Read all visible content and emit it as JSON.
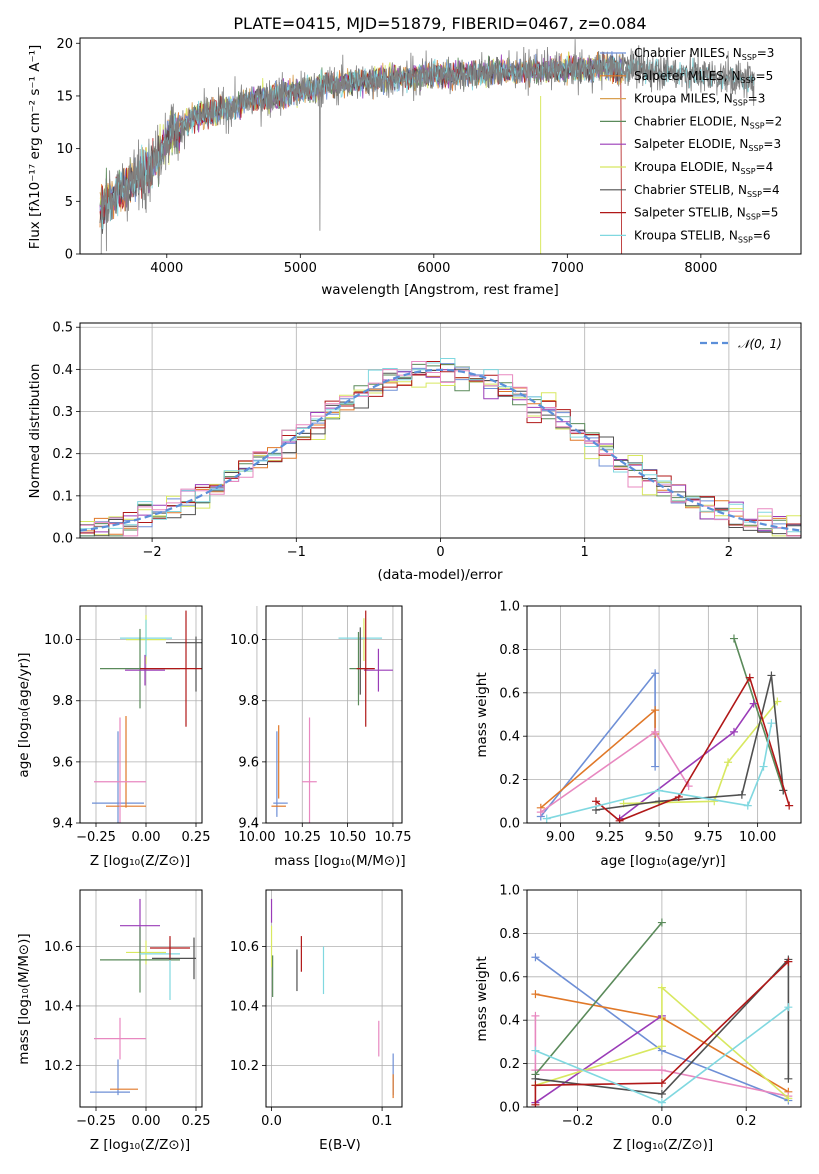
{
  "colors": {
    "Chabrier MILES": "#6e8fd6",
    "Salpeter MILES": "#e07828",
    "Kroupa MILES": "#d9a050",
    "Chabrier ELODIE": "#5a8a5a",
    "Salpeter ELODIE": "#9a3cb8",
    "Kroupa ELODIE": "#d8e860",
    "Chabrier STELIB": "#505050",
    "Salpeter STELIB": "#b01818",
    "Kroupa STELIB": "#80d8e0",
    "pink": "#e888c0",
    "normal": "#5b8fd9"
  },
  "chart_data": [
    {
      "id": "spectrum",
      "type": "line",
      "title": "PLATE=0415, MJD=51879, FIBERID=0467, z=0.084",
      "xlabel": "wavelength [Angstrom, rest frame]",
      "ylabel": "Flux [fλ10⁻¹⁷ erg cm⁻² s⁻¹ A⁻¹]",
      "xlim": [
        3350,
        8750
      ],
      "ylim": [
        0,
        20.5
      ],
      "xticks": [
        "4000",
        "5000",
        "6000",
        "7000",
        "8000"
      ],
      "yticks": [
        "0",
        "5",
        "10",
        "15",
        "20"
      ],
      "grid": false,
      "legend_position": "upper right",
      "legend": [
        {
          "name": "Chabrier MILES",
          "nssp": "3"
        },
        {
          "name": "Salpeter MILES",
          "nssp": "5"
        },
        {
          "name": "Kroupa MILES",
          "nssp": "3"
        },
        {
          "name": "Chabrier ELODIE",
          "nssp": "2"
        },
        {
          "name": "Salpeter ELODIE",
          "nssp": "3"
        },
        {
          "name": "Kroupa ELODIE",
          "nssp": "4"
        },
        {
          "name": "Chabrier STELIB",
          "nssp": "4"
        },
        {
          "name": "Salpeter STELIB",
          "nssp": "5"
        },
        {
          "name": "Kroupa STELIB",
          "nssp": "6"
        }
      ],
      "nssp_label": "N",
      "nssp_sub": "SSP",
      "continuum": {
        "wavelength": [
          3500,
          3700,
          3900,
          4000,
          4200,
          4400,
          4600,
          4800,
          5000,
          5200,
          5500,
          6000,
          6500,
          7000,
          7400,
          8000,
          8400
        ],
        "flux": [
          4.5,
          6.5,
          8.5,
          11.0,
          13.0,
          13.5,
          14.5,
          15.0,
          15.5,
          16.0,
          16.5,
          17.0,
          17.3,
          17.5,
          17.7,
          17.0,
          16.5
        ]
      }
    },
    {
      "id": "residuals",
      "type": "histogram",
      "xlabel": "(data-model)/error",
      "ylabel": "Normed distribution",
      "xlim": [
        -2.5,
        2.5
      ],
      "ylim": [
        0,
        0.51
      ],
      "xticks": [
        "−2",
        "−1",
        "0",
        "1",
        "2"
      ],
      "yticks": [
        "0.0",
        "0.1",
        "0.2",
        "0.3",
        "0.4",
        "0.5"
      ],
      "grid": true,
      "bin_width": 0.1,
      "legend": "𝒩(0, 1)",
      "legend_position": "upper right",
      "reference_curve": {
        "name": "N(0,1)",
        "mean": 0,
        "sigma": 1
      }
    },
    {
      "id": "age_vs_Z",
      "type": "errorbar",
      "xlabel": "Z [log₁₀(Z/Z⊙)]",
      "ylabel": "age  [log₁₀(age/yr)]",
      "xlim": [
        -0.33,
        0.28
      ],
      "ylim": [
        9.4,
        10.11
      ],
      "xticks": [
        "−0.25",
        "0.00",
        "0.25"
      ],
      "yticks": [
        "9.4",
        "9.6",
        "9.8",
        "10.0"
      ],
      "grid": true,
      "points": [
        {
          "c": "Chabrier MILES",
          "x": -0.14,
          "xerr": 0.13,
          "y": 9.465,
          "yerr": 0.0
        },
        {
          "c": "Chabrier MILES",
          "x": -0.14,
          "xerr": 0.0,
          "y": 9.55,
          "yerr": 0.15
        },
        {
          "c": "Salpeter MILES",
          "x": -0.1,
          "xerr": 0.1,
          "y": 9.455,
          "yerr": 0.0
        },
        {
          "c": "Salpeter MILES",
          "x": -0.1,
          "xerr": 0.0,
          "y": 9.6,
          "yerr": 0.15
        },
        {
          "c": "pink",
          "x": -0.13,
          "xerr": 0.13,
          "y": 9.535,
          "yerr": 0.21
        },
        {
          "c": "Kroupa ELODIE",
          "x": 0.0,
          "xerr": 0.1,
          "y": 10.0,
          "yerr": 0.08
        },
        {
          "c": "Kroupa STELIB",
          "x": 0.0,
          "xerr": 0.13,
          "y": 10.005,
          "yerr": 0.06
        },
        {
          "c": "Chabrier ELODIE",
          "x": -0.03,
          "xerr": 0.2,
          "y": 9.905,
          "yerr": 0.13
        },
        {
          "c": "Salpeter ELODIE",
          "x": -0.005,
          "xerr": 0.1,
          "y": 9.9,
          "yerr": 0.05
        },
        {
          "c": "Chabrier STELIB",
          "x": 0.2,
          "xerr": 0.1,
          "y": 9.99,
          "yerr": 0.0
        },
        {
          "c": "Chabrier STELIB",
          "x": 0.25,
          "xerr": 0.0,
          "y": 9.92,
          "yerr": 0.09
        },
        {
          "c": "Salpeter STELIB",
          "x": 0.2,
          "xerr": 0.23,
          "y": 9.905,
          "yerr": 0.19
        }
      ]
    },
    {
      "id": "age_vs_mass",
      "type": "errorbar",
      "xlabel": "mass [log₁₀(M/M⊙)]",
      "ylabel": "",
      "xlim": [
        10.05,
        10.8
      ],
      "ylim": [
        9.4,
        10.11
      ],
      "xticks": [
        "10.00",
        "10.25",
        "10.50",
        "10.75"
      ],
      "yticks": [
        "9.4",
        "9.6",
        "9.8",
        "10.0"
      ],
      "grid": true,
      "points": [
        {
          "c": "Chabrier MILES",
          "x": 10.13,
          "xerr": 0.04,
          "y": 9.465,
          "yerr": 0.0
        },
        {
          "c": "Chabrier MILES",
          "x": 10.11,
          "xerr": 0.0,
          "y": 9.56,
          "yerr": 0.14
        },
        {
          "c": "Salpeter MILES",
          "x": 10.12,
          "xerr": 0.04,
          "y": 9.455,
          "yerr": 0.0
        },
        {
          "c": "Salpeter MILES",
          "x": 10.12,
          "xerr": 0.0,
          "y": 9.6,
          "yerr": 0.12
        },
        {
          "c": "pink",
          "x": 10.29,
          "xerr": 0.04,
          "y": 9.535,
          "yerr": 0.21
        },
        {
          "c": "Kroupa ELODIE",
          "x": 10.59,
          "xerr": 0.0,
          "y": 10.0,
          "yerr": 0.07
        },
        {
          "c": "Kroupa STELIB",
          "x": 10.57,
          "xerr": 0.12,
          "y": 10.005,
          "yerr": 0.0
        },
        {
          "c": "Chabrier ELODIE",
          "x": 10.56,
          "xerr": 0.05,
          "y": 9.905,
          "yerr": 0.12
        },
        {
          "c": "Salpeter ELODIE",
          "x": 10.67,
          "xerr": 0.08,
          "y": 9.9,
          "yerr": 0.07
        },
        {
          "c": "Chabrier STELIB",
          "x": 10.57,
          "xerr": 0.0,
          "y": 9.93,
          "yerr": 0.11
        },
        {
          "c": "Salpeter STELIB",
          "x": 10.6,
          "xerr": 0.05,
          "y": 9.905,
          "yerr": 0.19
        }
      ]
    },
    {
      "id": "weight_vs_age",
      "type": "line",
      "xlabel": "age  [log₁₀(age/yr)]",
      "ylabel": "mass weight",
      "xlim": [
        8.83,
        10.22
      ],
      "ylim": [
        0,
        1.0
      ],
      "xticks": [
        "9.00",
        "9.25",
        "9.50",
        "9.75",
        "10.00"
      ],
      "yticks": [
        "0.0",
        "0.2",
        "0.4",
        "0.6",
        "0.8",
        "1.0"
      ],
      "grid": true,
      "series": [
        {
          "c": "Chabrier MILES",
          "x": [
            8.9,
            9.48,
            9.48
          ],
          "y": [
            0.03,
            0.69,
            0.26
          ]
        },
        {
          "c": "Salpeter MILES",
          "x": [
            8.9,
            9.48,
            9.48
          ],
          "y": [
            0.07,
            0.52,
            0.41
          ]
        },
        {
          "c": "pink",
          "x": [
            8.9,
            9.48,
            9.65
          ],
          "y": [
            0.05,
            0.42,
            0.17
          ]
        },
        {
          "c": "Chabrier ELODIE",
          "x": [
            9.88,
            10.13
          ],
          "y": [
            0.85,
            0.15
          ]
        },
        {
          "c": "Salpeter ELODIE",
          "x": [
            9.3,
            9.88,
            9.98
          ],
          "y": [
            0.02,
            0.42,
            0.55
          ]
        },
        {
          "c": "Kroupa ELODIE",
          "x": [
            9.32,
            9.78,
            9.85,
            10.1
          ],
          "y": [
            0.09,
            0.1,
            0.28,
            0.56
          ]
        },
        {
          "c": "Chabrier STELIB",
          "x": [
            9.18,
            9.5,
            9.92,
            10.07,
            10.13
          ],
          "y": [
            0.06,
            0.1,
            0.13,
            0.68,
            0.15
          ]
        },
        {
          "c": "Salpeter STELIB",
          "x": [
            9.18,
            9.3,
            9.6,
            9.96,
            10.16
          ],
          "y": [
            0.1,
            0.01,
            0.12,
            0.67,
            0.08
          ]
        },
        {
          "c": "Kroupa STELIB",
          "x": [
            8.93,
            9.5,
            9.95,
            10.03,
            10.07
          ],
          "y": [
            0.02,
            0.15,
            0.08,
            0.26,
            0.46
          ]
        }
      ]
    },
    {
      "id": "mass_vs_Z",
      "type": "errorbar",
      "xlabel": "Z [log₁₀(Z/Z⊙)]",
      "ylabel": "mass [log₁₀(M/M⊙)]",
      "xlim": [
        -0.33,
        0.28
      ],
      "ylim": [
        10.06,
        10.79
      ],
      "xticks": [
        "−0.25",
        "0.00",
        "0.25"
      ],
      "yticks": [
        "10.2",
        "10.4",
        "10.6"
      ],
      "grid": true,
      "points": [
        {
          "c": "Chabrier MILES",
          "x": -0.18,
          "xerr": 0.1,
          "y": 10.11,
          "yerr": 0.0
        },
        {
          "c": "Chabrier MILES",
          "x": -0.14,
          "xerr": 0.0,
          "y": 10.16,
          "yerr": 0.06
        },
        {
          "c": "Salpeter MILES",
          "x": -0.11,
          "xerr": 0.07,
          "y": 10.12,
          "yerr": 0.0
        },
        {
          "c": "pink",
          "x": -0.13,
          "xerr": 0.13,
          "y": 10.29,
          "yerr": 0.07
        },
        {
          "c": "Salpeter ELODIE",
          "x": -0.03,
          "xerr": 0.1,
          "y": 10.67,
          "yerr": 0.09
        },
        {
          "c": "Kroupa ELODIE",
          "x": 0.0,
          "xerr": 0.1,
          "y": 10.58,
          "yerr": 0.04
        },
        {
          "c": "Chabrier ELODIE",
          "x": -0.03,
          "xerr": 0.2,
          "y": 10.555,
          "yerr": 0.11
        },
        {
          "c": "Kroupa STELIB",
          "x": 0.07,
          "xerr": 0.1,
          "y": 10.575,
          "yerr": 0.0
        },
        {
          "c": "Kroupa STELIB",
          "x": 0.12,
          "xerr": 0.0,
          "y": 10.52,
          "yerr": 0.1
        },
        {
          "c": "Salpeter STELIB",
          "x": 0.12,
          "xerr": 0.1,
          "y": 10.595,
          "yerr": 0.04
        },
        {
          "c": "Chabrier STELIB",
          "x": 0.24,
          "xerr": 0.0,
          "y": 10.56,
          "yerr": 0.07
        },
        {
          "c": "Chabrier STELIB",
          "x": 0.14,
          "xerr": 0.11,
          "y": 10.56,
          "yerr": 0.0
        }
      ]
    },
    {
      "id": "mass_vs_ebv",
      "type": "errorbar",
      "xlabel": "E(B-V)",
      "ylabel": "",
      "xlim": [
        -0.005,
        0.118
      ],
      "ylim": [
        10.06,
        10.79
      ],
      "xticks": [
        "0.0",
        "0.1"
      ],
      "yticks": [
        "10.2",
        "10.4",
        "10.6"
      ],
      "grid": true,
      "points": [
        {
          "c": "Salpeter ELODIE",
          "x": 0.0,
          "xerr": 0.0,
          "y": 10.72,
          "yerr": 0.04
        },
        {
          "c": "Kroupa ELODIE",
          "x": 0.0,
          "xerr": 0.0,
          "y": 10.6,
          "yerr": 0.07
        },
        {
          "c": "Chabrier ELODIE",
          "x": 0.001,
          "xerr": 0.0,
          "y": 10.5,
          "yerr": 0.07
        },
        {
          "c": "Chabrier STELIB",
          "x": 0.023,
          "xerr": 0.0,
          "y": 10.52,
          "yerr": 0.07
        },
        {
          "c": "Salpeter STELIB",
          "x": 0.027,
          "xerr": 0.0,
          "y": 10.575,
          "yerr": 0.06
        },
        {
          "c": "Kroupa STELIB",
          "x": 0.047,
          "xerr": 0.0,
          "y": 10.52,
          "yerr": 0.08
        },
        {
          "c": "pink",
          "x": 0.097,
          "xerr": 0.0,
          "y": 10.29,
          "yerr": 0.06
        },
        {
          "c": "Chabrier MILES",
          "x": 0.11,
          "xerr": 0.0,
          "y": 10.17,
          "yerr": 0.07
        },
        {
          "c": "Salpeter MILES",
          "x": 0.11,
          "xerr": 0.0,
          "y": 10.13,
          "yerr": 0.04
        }
      ]
    },
    {
      "id": "weight_vs_Z",
      "type": "line",
      "xlabel": "Z [log₁₀(Z/Z⊙)]",
      "ylabel": "mass weight",
      "xlim": [
        -0.32,
        0.33
      ],
      "ylim": [
        0,
        1.0
      ],
      "xticks": [
        "−0.2",
        "0.0",
        "0.2"
      ],
      "yticks": [
        "0.0",
        "0.2",
        "0.4",
        "0.6",
        "0.8",
        "1.0"
      ],
      "grid": true,
      "series": [
        {
          "c": "Chabrier MILES",
          "x": [
            -0.3,
            0.0,
            0.3
          ],
          "y": [
            0.69,
            0.26,
            0.03
          ]
        },
        {
          "c": "Salpeter MILES",
          "x": [
            -0.3,
            0.0,
            0.3
          ],
          "y": [
            0.52,
            0.41,
            0.07
          ]
        },
        {
          "c": "pink",
          "x": [
            -0.3,
            -0.3,
            0.0,
            0.3
          ],
          "y": [
            0.42,
            0.17,
            0.17,
            0.05
          ]
        },
        {
          "c": "Chabrier ELODIE",
          "x": [
            -0.3,
            0.0
          ],
          "y": [
            0.15,
            0.85
          ]
        },
        {
          "c": "Salpeter ELODIE",
          "x": [
            -0.3,
            0.0
          ],
          "y": [
            0.02,
            0.42
          ]
        },
        {
          "c": "Kroupa ELODIE",
          "x": [
            -0.3,
            0.0,
            0.0,
            0.3
          ],
          "y": [
            0.1,
            0.28,
            0.55,
            0.04
          ]
        },
        {
          "c": "Chabrier STELIB",
          "x": [
            -0.3,
            0.0,
            0.3,
            0.3
          ],
          "y": [
            0.13,
            0.06,
            0.68,
            0.13
          ]
        },
        {
          "c": "Salpeter STELIB",
          "x": [
            -0.3,
            -0.3,
            0.0,
            0.3
          ],
          "y": [
            0.01,
            0.1,
            0.11,
            0.67
          ]
        },
        {
          "c": "Kroupa STELIB",
          "x": [
            -0.3,
            0.0,
            0.3
          ],
          "y": [
            0.26,
            0.02,
            0.46
          ]
        }
      ]
    }
  ]
}
